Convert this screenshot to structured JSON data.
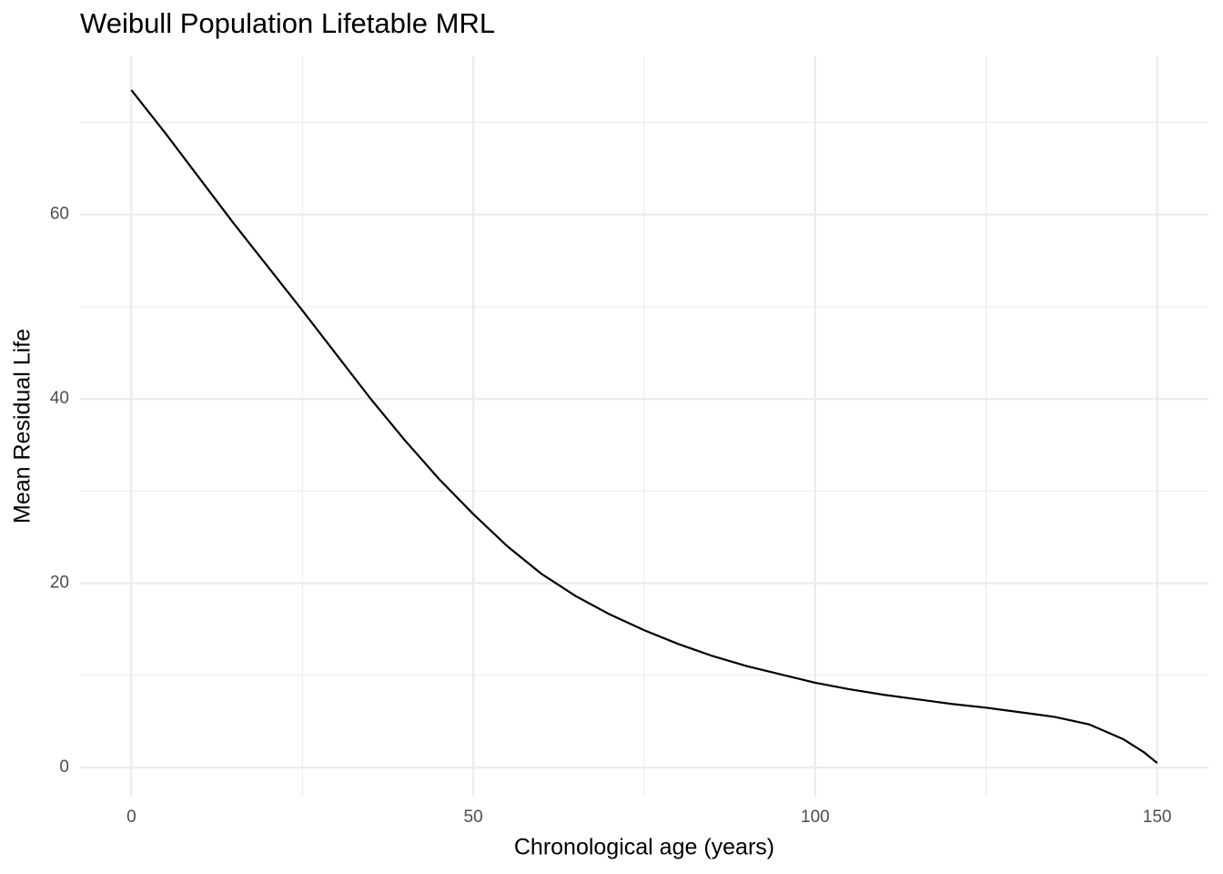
{
  "chart_data": {
    "type": "line",
    "title": "Weibull Population Lifetable MRL",
    "x_label": "Chronological age (years)",
    "y_label": "Mean Residual Life",
    "x": [
      0,
      5,
      10,
      15,
      20,
      25,
      30,
      35,
      40,
      45,
      50,
      55,
      60,
      65,
      70,
      75,
      80,
      85,
      90,
      95,
      100,
      105,
      110,
      115,
      120,
      125,
      130,
      135,
      140,
      145,
      148,
      150
    ],
    "series": [
      {
        "color": "#000000",
        "values": [
          73.5,
          68.8,
          63.9,
          59.0,
          54.3,
          49.6,
          44.8,
          40.0,
          35.5,
          31.3,
          27.5,
          24.0,
          21.0,
          18.6,
          16.6,
          14.9,
          13.4,
          12.1,
          11.0,
          10.1,
          9.2,
          8.5,
          7.9,
          7.4,
          6.9,
          6.5,
          6.0,
          5.5,
          4.7,
          3.1,
          1.7,
          0.5
        ]
      }
    ],
    "xlim": [
      -7.5,
      157.5
    ],
    "ylim": [
      -3.15,
      77.15
    ],
    "xticks": [
      0,
      50,
      100,
      150
    ],
    "yticks": [
      0,
      20,
      40,
      60
    ],
    "x_minor_grid": [
      25,
      75,
      125
    ],
    "y_minor_grid": [
      10,
      30,
      50,
      70
    ],
    "grid": true
  }
}
